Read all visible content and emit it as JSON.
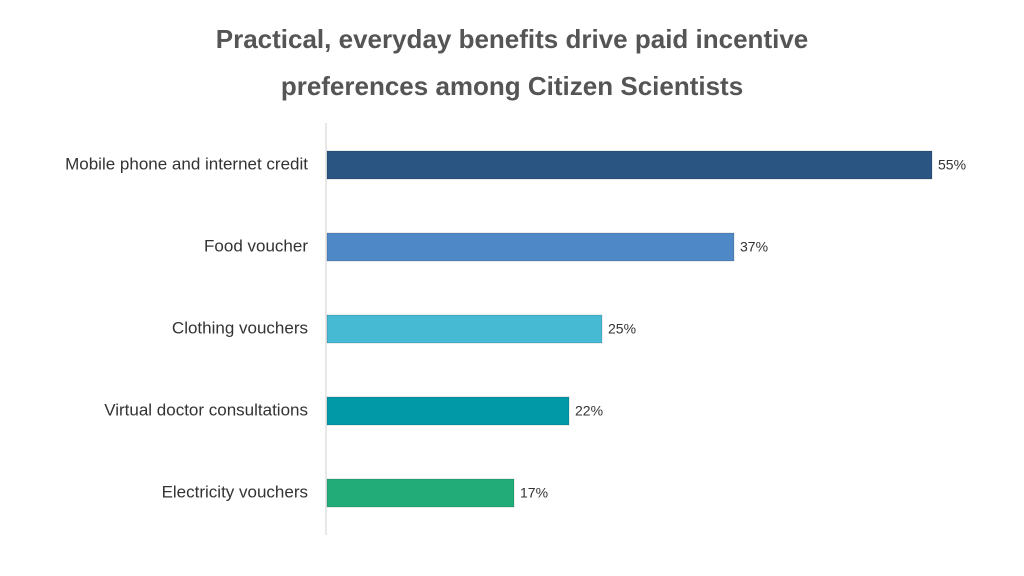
{
  "chart_data": {
    "type": "hbar",
    "title": "Practical, everyday benefits drive paid incentive preferences among Citizen Scientists",
    "categories": [
      "Mobile phone and internet credit",
      "Food voucher",
      "Clothing vouchers",
      "Virtual doctor consultations",
      "Electricity vouchers"
    ],
    "values": [
      55,
      37,
      25,
      22,
      17
    ],
    "value_labels": [
      "55%",
      "37%",
      "25%",
      "22%",
      "17%"
    ],
    "colors": [
      "#2a5481",
      "#4f88c6",
      "#46b9d3",
      "#0199a8",
      "#22ad78"
    ]
  }
}
